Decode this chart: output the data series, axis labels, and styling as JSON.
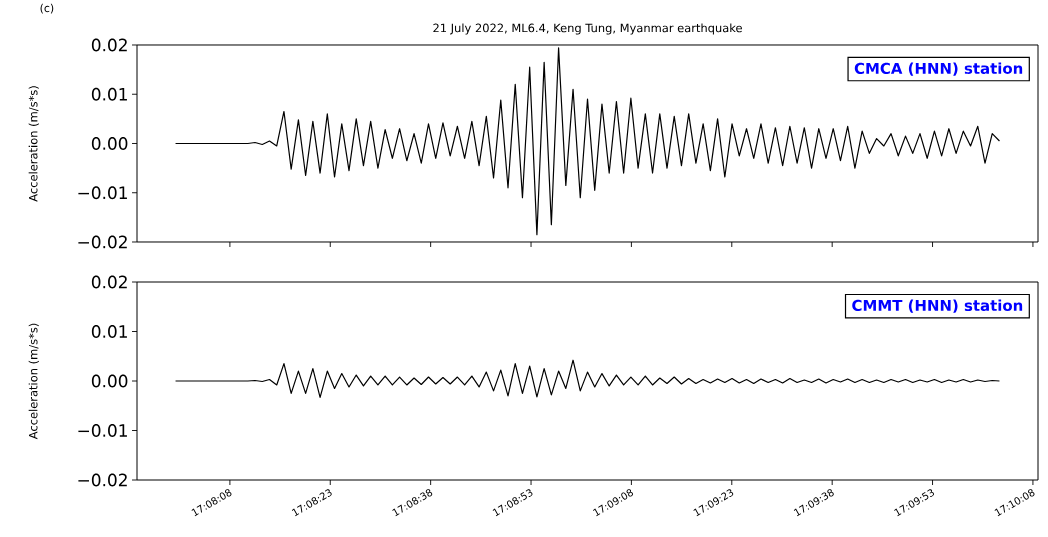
{
  "chart_data": [
    {
      "type": "line",
      "title": "21 July 2022, ML6.4, Keng Tung, Myanmar earthquake",
      "ylabel": "Acceleration (m/s*s)",
      "annotations": [
        "CMCA (HNN) station",
        "(c)"
      ],
      "color": "#000000",
      "tick_labels": "y",
      "xlim": [
        17.1317,
        17.1691
      ],
      "ylim": [
        -0.02,
        0.02
      ],
      "xticks": [
        {
          "value": 17.135556,
          "label": null
        },
        {
          "value": 17.139722,
          "label": null
        },
        {
          "value": 17.143889,
          "label": null
        },
        {
          "value": 17.148056,
          "label": null
        },
        {
          "value": 17.152222,
          "label": null
        },
        {
          "value": 17.156389,
          "label": null
        },
        {
          "value": 17.160556,
          "label": null
        },
        {
          "value": 17.164722,
          "label": null
        },
        {
          "value": 17.168889,
          "label": null
        }
      ],
      "yticks": [
        {
          "value": -0.02,
          "label": "−0.02"
        },
        {
          "value": -0.01,
          "label": "−0.01"
        },
        {
          "value": 0,
          "label": "0.00"
        },
        {
          "value": 0.01,
          "label": "0.01"
        },
        {
          "value": 0.02,
          "label": "0.02"
        }
      ],
      "x": [
        17.1333,
        17.1336,
        17.1339,
        17.1342,
        17.1345,
        17.1348,
        17.1351,
        17.1354,
        17.1357,
        17.136,
        17.1363,
        17.1366,
        17.1369,
        17.1372,
        17.1375,
        17.1378,
        17.1381,
        17.1384,
        17.1387,
        17.139,
        17.1393,
        17.1396,
        17.1399,
        17.1402,
        17.1405,
        17.1408,
        17.1411,
        17.1414,
        17.1417,
        17.142,
        17.1423,
        17.1426,
        17.1429,
        17.1432,
        17.1435,
        17.1438,
        17.1441,
        17.1444,
        17.1447,
        17.145,
        17.1453,
        17.1456,
        17.1459,
        17.1462,
        17.1465,
        17.1468,
        17.1471,
        17.1474,
        17.1477,
        17.148,
        17.1483,
        17.1486,
        17.1489,
        17.1492,
        17.1495,
        17.1498,
        17.1501,
        17.1504,
        17.1507,
        17.151,
        17.1513,
        17.1516,
        17.1519,
        17.1522,
        17.1525,
        17.1528,
        17.1531,
        17.1534,
        17.1537,
        17.154,
        17.1543,
        17.1546,
        17.1549,
        17.1552,
        17.1555,
        17.1558,
        17.1561,
        17.1564,
        17.1567,
        17.157,
        17.1573,
        17.1576,
        17.1579,
        17.1582,
        17.1585,
        17.1588,
        17.1591,
        17.1594,
        17.1597,
        17.16,
        17.1603,
        17.1606,
        17.1609,
        17.1612,
        17.1615,
        17.1618,
        17.1621,
        17.1624,
        17.1627,
        17.163,
        17.1633,
        17.1636,
        17.1639,
        17.1642,
        17.1645,
        17.1648,
        17.1651,
        17.1654,
        17.1657,
        17.166,
        17.1663,
        17.1666,
        17.1669,
        17.1672,
        17.1675
      ],
      "values": [
        0,
        0,
        0,
        0,
        0,
        0,
        0,
        0,
        0,
        0,
        0,
        0.0002,
        -0.0002,
        0.0005,
        -0.0005,
        0.0065,
        -0.0052,
        0.0048,
        -0.0065,
        0.0045,
        -0.006,
        0.006,
        -0.0068,
        0.004,
        -0.0055,
        0.005,
        -0.0045,
        0.0045,
        -0.005,
        0.0028,
        -0.003,
        0.003,
        -0.0035,
        0.002,
        -0.004,
        0.004,
        -0.003,
        0.0042,
        -0.0025,
        0.0035,
        -0.003,
        0.0045,
        -0.0045,
        0.0055,
        -0.007,
        0.0088,
        -0.009,
        0.012,
        -0.011,
        0.0155,
        -0.0185,
        0.0165,
        -0.0165,
        0.0194,
        -0.0085,
        0.011,
        -0.011,
        0.009,
        -0.0095,
        0.008,
        -0.006,
        0.0085,
        -0.006,
        0.0092,
        -0.005,
        0.006,
        -0.006,
        0.006,
        -0.005,
        0.0055,
        -0.0045,
        0.006,
        -0.004,
        0.004,
        -0.0055,
        0.005,
        -0.0068,
        0.004,
        -0.0025,
        0.003,
        -0.003,
        0.004,
        -0.004,
        0.0032,
        -0.0045,
        0.0035,
        -0.004,
        0.0032,
        -0.005,
        0.003,
        -0.003,
        0.003,
        -0.0035,
        0.0035,
        -0.005,
        0.0025,
        -0.002,
        0.001,
        -0.0005,
        0.002,
        -0.0025,
        0.0015,
        -0.002,
        0.002,
        -0.003,
        0.0025,
        -0.0025,
        0.003,
        -0.002,
        0.0025,
        -0.0005,
        0.0035,
        -0.004,
        0.002,
        0.0005
      ]
    },
    {
      "type": "line",
      "ylabel": "Acceleration (m/s*s)",
      "annotations": [
        "CMMT (HNN) station"
      ],
      "color": "#000000",
      "xlim": [
        17.1317,
        17.1691
      ],
      "ylim": [
        -0.02,
        0.02
      ],
      "xticks": [
        {
          "value": 17.135556,
          "label": "17:08:08"
        },
        {
          "value": 17.139722,
          "label": "17:08:23"
        },
        {
          "value": 17.143889,
          "label": "17:08:38"
        },
        {
          "value": 17.148056,
          "label": "17:08:53"
        },
        {
          "value": 17.152222,
          "label": "17:09:08"
        },
        {
          "value": 17.156389,
          "label": "17:09:23"
        },
        {
          "value": 17.160556,
          "label": "17:09:38"
        },
        {
          "value": 17.164722,
          "label": "17:09:53"
        },
        {
          "value": 17.168889,
          "label": "17:10:08"
        }
      ],
      "yticks": [
        {
          "value": -0.02,
          "label": "−0.02"
        },
        {
          "value": -0.01,
          "label": "−0.01"
        },
        {
          "value": 0,
          "label": "0.00"
        },
        {
          "value": 0.01,
          "label": "0.01"
        },
        {
          "value": 0.02,
          "label": "0.02"
        }
      ],
      "x": [
        17.1333,
        17.1336,
        17.1339,
        17.1342,
        17.1345,
        17.1348,
        17.1351,
        17.1354,
        17.1357,
        17.136,
        17.1363,
        17.1366,
        17.1369,
        17.1372,
        17.1375,
        17.1378,
        17.1381,
        17.1384,
        17.1387,
        17.139,
        17.1393,
        17.1396,
        17.1399,
        17.1402,
        17.1405,
        17.1408,
        17.1411,
        17.1414,
        17.1417,
        17.142,
        17.1423,
        17.1426,
        17.1429,
        17.1432,
        17.1435,
        17.1438,
        17.1441,
        17.1444,
        17.1447,
        17.145,
        17.1453,
        17.1456,
        17.1459,
        17.1462,
        17.1465,
        17.1468,
        17.1471,
        17.1474,
        17.1477,
        17.148,
        17.1483,
        17.1486,
        17.1489,
        17.1492,
        17.1495,
        17.1498,
        17.1501,
        17.1504,
        17.1507,
        17.151,
        17.1513,
        17.1516,
        17.1519,
        17.1522,
        17.1525,
        17.1528,
        17.1531,
        17.1534,
        17.1537,
        17.154,
        17.1543,
        17.1546,
        17.1549,
        17.1552,
        17.1555,
        17.1558,
        17.1561,
        17.1564,
        17.1567,
        17.157,
        17.1573,
        17.1576,
        17.1579,
        17.1582,
        17.1585,
        17.1588,
        17.1591,
        17.1594,
        17.1597,
        17.16,
        17.1603,
        17.1606,
        17.1609,
        17.1612,
        17.1615,
        17.1618,
        17.1621,
        17.1624,
        17.1627,
        17.163,
        17.1633,
        17.1636,
        17.1639,
        17.1642,
        17.1645,
        17.1648,
        17.1651,
        17.1654,
        17.1657,
        17.166,
        17.1663,
        17.1666,
        17.1669,
        17.1672,
        17.1675
      ],
      "values": [
        0,
        0,
        0,
        0,
        0,
        0,
        0,
        0,
        0,
        0,
        0,
        0.0001,
        -0.0001,
        0.0003,
        -0.0008,
        0.0035,
        -0.0025,
        0.002,
        -0.0025,
        0.0025,
        -0.0033,
        0.002,
        -0.0015,
        0.0015,
        -0.0012,
        0.0012,
        -0.001,
        0.001,
        -0.0008,
        0.001,
        -0.0008,
        0.0008,
        -0.0008,
        0.0006,
        -0.0007,
        0.0008,
        -0.0006,
        0.0007,
        -0.0006,
        0.0008,
        -0.0008,
        0.001,
        -0.0012,
        0.0018,
        -0.002,
        0.0022,
        -0.003,
        0.0035,
        -0.0025,
        0.003,
        -0.0032,
        0.0025,
        -0.0028,
        0.002,
        -0.0015,
        0.0042,
        -0.002,
        0.0018,
        -0.0012,
        0.0015,
        -0.001,
        0.0012,
        -0.0008,
        0.0008,
        -0.0008,
        0.001,
        -0.0008,
        0.0006,
        -0.0005,
        0.0008,
        -0.0006,
        0.0005,
        -0.0005,
        0.0003,
        -0.0004,
        0.0004,
        -0.0003,
        0.0005,
        -0.0004,
        0.0003,
        -0.0005,
        0.0004,
        -0.0003,
        0.0003,
        -0.0004,
        0.0005,
        -0.0003,
        0.0002,
        -0.0003,
        0.0004,
        -0.0004,
        0.0003,
        -0.0002,
        0.0004,
        -0.0003,
        0.0003,
        -0.0003,
        0.0002,
        -0.0003,
        0.0003,
        -0.0002,
        0.0003,
        -0.0003,
        0.0002,
        -0.0002,
        0.0003,
        -0.0003,
        0.0002,
        -0.0002,
        0.0003,
        -0.0002,
        0.0002,
        -0.0001,
        0.0001,
        0
      ]
    }
  ]
}
